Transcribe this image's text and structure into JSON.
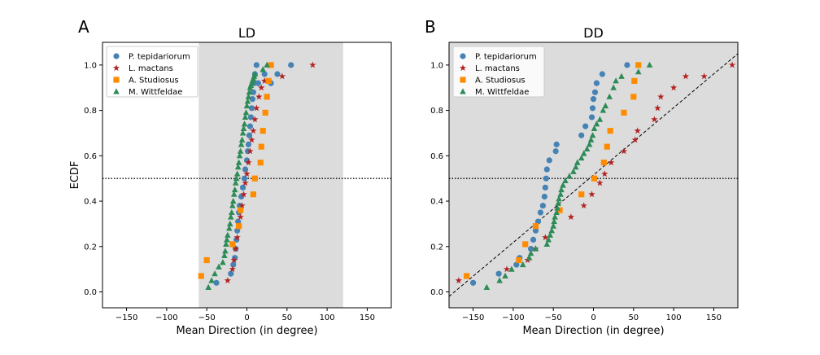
{
  "colors": {
    "P. tepidariorum": "#4682b4",
    "L. mactans": "#b22222",
    "A. Studiosus": "#ff8c00",
    "M. Wittfeldae": "#2e8b57",
    "shade": "#dcdcdc"
  },
  "chart_data": [
    {
      "type": "scatter",
      "panel_letter": "A",
      "title": "LD",
      "xlabel": "Mean Direction (in degree)",
      "ylabel": "ECDF",
      "xlim": [
        -180,
        180
      ],
      "ylim": [
        -0.07,
        1.1
      ],
      "xticks": [
        -150,
        -100,
        -50,
        0,
        50,
        100,
        150
      ],
      "yticks": [
        0.0,
        0.2,
        0.4,
        0.6,
        0.8,
        1.0
      ],
      "shaded_x_range": [
        -60,
        120
      ],
      "hline_y": 0.5,
      "legend_position": "top-left",
      "series": [
        {
          "name": "P. tepidariorum",
          "marker": "circle",
          "x": [
            -38,
            -20,
            -17,
            -15,
            -14,
            -13,
            -12,
            -11,
            -10,
            -9,
            -7,
            -5,
            -3,
            -2,
            0,
            1,
            2,
            3,
            4,
            5,
            6,
            7,
            8,
            9,
            10,
            12,
            14,
            22,
            30,
            38,
            55
          ],
          "y": [
            0.04,
            0.08,
            0.12,
            0.15,
            0.19,
            0.23,
            0.27,
            0.31,
            0.35,
            0.38,
            0.42,
            0.46,
            0.5,
            0.54,
            0.58,
            0.62,
            0.65,
            0.69,
            0.73,
            0.77,
            0.81,
            0.85,
            0.88,
            0.92,
            0.96,
            1.0,
            0.92,
            0.96,
            0.92,
            0.96,
            1.0
          ]
        },
        {
          "name": "L. mactans",
          "marker": "star",
          "x": [
            -24,
            -18,
            -16,
            -14,
            -12,
            -10,
            -8,
            -6,
            -4,
            -2,
            0,
            2,
            4,
            6,
            8,
            10,
            12,
            15,
            18,
            22,
            44,
            82
          ],
          "y": [
            0.05,
            0.1,
            0.14,
            0.19,
            0.24,
            0.29,
            0.33,
            0.38,
            0.43,
            0.48,
            0.52,
            0.57,
            0.62,
            0.67,
            0.71,
            0.76,
            0.81,
            0.86,
            0.9,
            0.93,
            0.95,
            1.0
          ]
        },
        {
          "name": "A. Studiosus",
          "marker": "square",
          "x": [
            -57,
            -50,
            -18,
            -10,
            -8,
            8,
            10,
            17,
            18,
            20,
            23,
            25,
            27,
            30
          ],
          "y": [
            0.07,
            0.14,
            0.21,
            0.29,
            0.36,
            0.43,
            0.5,
            0.57,
            0.64,
            0.71,
            0.79,
            0.86,
            0.93,
            1.0
          ],
          "x_order_note": ""
        },
        {
          "name": "M. Wittfeldae",
          "marker": "triangle",
          "x": [
            -48,
            -44,
            -40,
            -35,
            -30,
            -28,
            -27,
            -26,
            -25,
            -24,
            -22,
            -21,
            -20,
            -19,
            -18,
            -17,
            -16,
            -15,
            -14,
            -13,
            -12,
            -11,
            -10,
            -9,
            -8,
            -7,
            -6,
            -5,
            -4,
            -3,
            -2,
            -1,
            0,
            1,
            2,
            3,
            4,
            5,
            6,
            7,
            8,
            9,
            10,
            20,
            25
          ],
          "y": [
            0.02,
            0.05,
            0.08,
            0.11,
            0.13,
            0.16,
            0.18,
            0.21,
            0.23,
            0.25,
            0.28,
            0.3,
            0.33,
            0.35,
            0.38,
            0.4,
            0.43,
            0.45,
            0.48,
            0.5,
            0.52,
            0.55,
            0.57,
            0.6,
            0.62,
            0.65,
            0.67,
            0.7,
            0.72,
            0.74,
            0.77,
            0.79,
            0.82,
            0.84,
            0.86,
            0.88,
            0.9,
            0.91,
            0.92,
            0.93,
            0.94,
            0.95,
            0.96,
            0.98,
            1.0
          ]
        }
      ]
    },
    {
      "type": "scatter",
      "panel_letter": "B",
      "title": "DD",
      "xlabel": "Mean Direction (in degree)",
      "ylabel": "",
      "xlim": [
        -180,
        180
      ],
      "ylim": [
        -0.07,
        1.1
      ],
      "xticks": [
        -150,
        -100,
        -50,
        0,
        50,
        100,
        150
      ],
      "yticks": [
        0.0,
        0.2,
        0.4,
        0.6,
        0.8,
        1.0
      ],
      "shaded_x_range": [
        -180,
        180
      ],
      "hline_y": 0.5,
      "diagonal_line": {
        "x": [
          -180,
          180
        ],
        "y": [
          -0.02,
          1.05
        ]
      },
      "legend_position": "top-left",
      "series": [
        {
          "name": "P. tepidariorum",
          "marker": "circle",
          "x": [
            -150,
            -118,
            -96,
            -92,
            -78,
            -75,
            -72,
            -69,
            -66,
            -63,
            -61,
            -60,
            -59,
            -58,
            -55,
            -47,
            -46,
            -15,
            -10,
            -2,
            -1,
            0,
            2,
            4,
            11,
            42
          ],
          "y": [
            0.04,
            0.08,
            0.12,
            0.15,
            0.19,
            0.23,
            0.27,
            0.31,
            0.35,
            0.38,
            0.42,
            0.46,
            0.5,
            0.54,
            0.58,
            0.62,
            0.65,
            0.69,
            0.73,
            0.77,
            0.81,
            0.85,
            0.88,
            0.92,
            0.96,
            1.0
          ]
        },
        {
          "name": "L. mactans",
          "marker": "star",
          "x": [
            -168,
            -108,
            -82,
            -72,
            -60,
            -28,
            -12,
            -2,
            8,
            14,
            22,
            38,
            52,
            55,
            76,
            80,
            84,
            100,
            115,
            138,
            173
          ],
          "y": [
            0.05,
            0.1,
            0.14,
            0.19,
            0.24,
            0.33,
            0.38,
            0.43,
            0.48,
            0.52,
            0.57,
            0.62,
            0.67,
            0.71,
            0.76,
            0.81,
            0.86,
            0.9,
            0.95,
            0.95,
            1.0
          ]
        },
        {
          "name": "A. Studiosus",
          "marker": "square",
          "x": [
            -158,
            -93,
            -85,
            -72,
            -42,
            -15,
            1,
            13,
            17,
            21,
            38,
            50,
            51,
            56
          ],
          "y": [
            0.07,
            0.14,
            0.21,
            0.29,
            0.36,
            0.43,
            0.5,
            0.57,
            0.64,
            0.71,
            0.79,
            0.86,
            0.93,
            1.0
          ]
        },
        {
          "name": "M. Wittfeldae",
          "marker": "triangle",
          "x": [
            -133,
            -117,
            -110,
            -102,
            -88,
            -80,
            -78,
            -72,
            -58,
            -56,
            -54,
            -52,
            -50,
            -49,
            -48,
            -46,
            -45,
            -44,
            -43,
            -41,
            -40,
            -38,
            -35,
            -30,
            -25,
            -22,
            -20,
            -15,
            -12,
            -8,
            -5,
            -3,
            -1,
            1,
            4,
            8,
            12,
            15,
            20,
            25,
            28,
            35,
            56,
            70
          ],
          "y": [
            0.02,
            0.05,
            0.07,
            0.1,
            0.12,
            0.15,
            0.17,
            0.19,
            0.21,
            0.23,
            0.25,
            0.27,
            0.29,
            0.31,
            0.33,
            0.35,
            0.37,
            0.39,
            0.41,
            0.43,
            0.45,
            0.47,
            0.49,
            0.51,
            0.53,
            0.55,
            0.57,
            0.59,
            0.61,
            0.63,
            0.65,
            0.67,
            0.69,
            0.72,
            0.74,
            0.76,
            0.8,
            0.82,
            0.86,
            0.9,
            0.93,
            0.95,
            0.97,
            1.0
          ]
        }
      ]
    }
  ]
}
